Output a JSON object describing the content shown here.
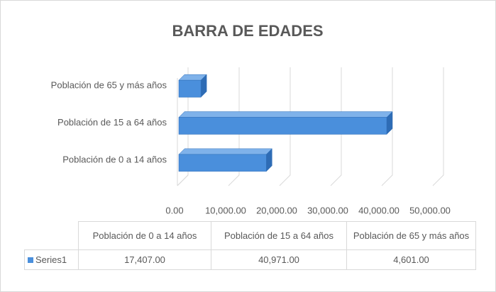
{
  "chart_data": {
    "type": "bar",
    "orientation": "horizontal",
    "title": "BARRA DE EDADES",
    "categories": [
      "Población de 0 a 14 años",
      "Población de 15 a 64 años",
      "Población de 65 y más años"
    ],
    "series": [
      {
        "name": "Series1",
        "color": "#4a8fdc",
        "values": [
          17407,
          40971,
          4601
        ],
        "value_labels": [
          "17,407.00",
          "40,971.00",
          "4,601.00"
        ]
      }
    ],
    "xlim": [
      0,
      50000
    ],
    "xticks": [
      {
        "value": 0,
        "label": "0.00"
      },
      {
        "value": 10000,
        "label": "10,000.00"
      },
      {
        "value": 20000,
        "label": "20,000.00"
      },
      {
        "value": 30000,
        "label": "30,000.00"
      },
      {
        "value": 40000,
        "label": "40,000.00"
      },
      {
        "value": 50000,
        "label": "50,000.00"
      }
    ],
    "grid": true,
    "data_table": true
  }
}
